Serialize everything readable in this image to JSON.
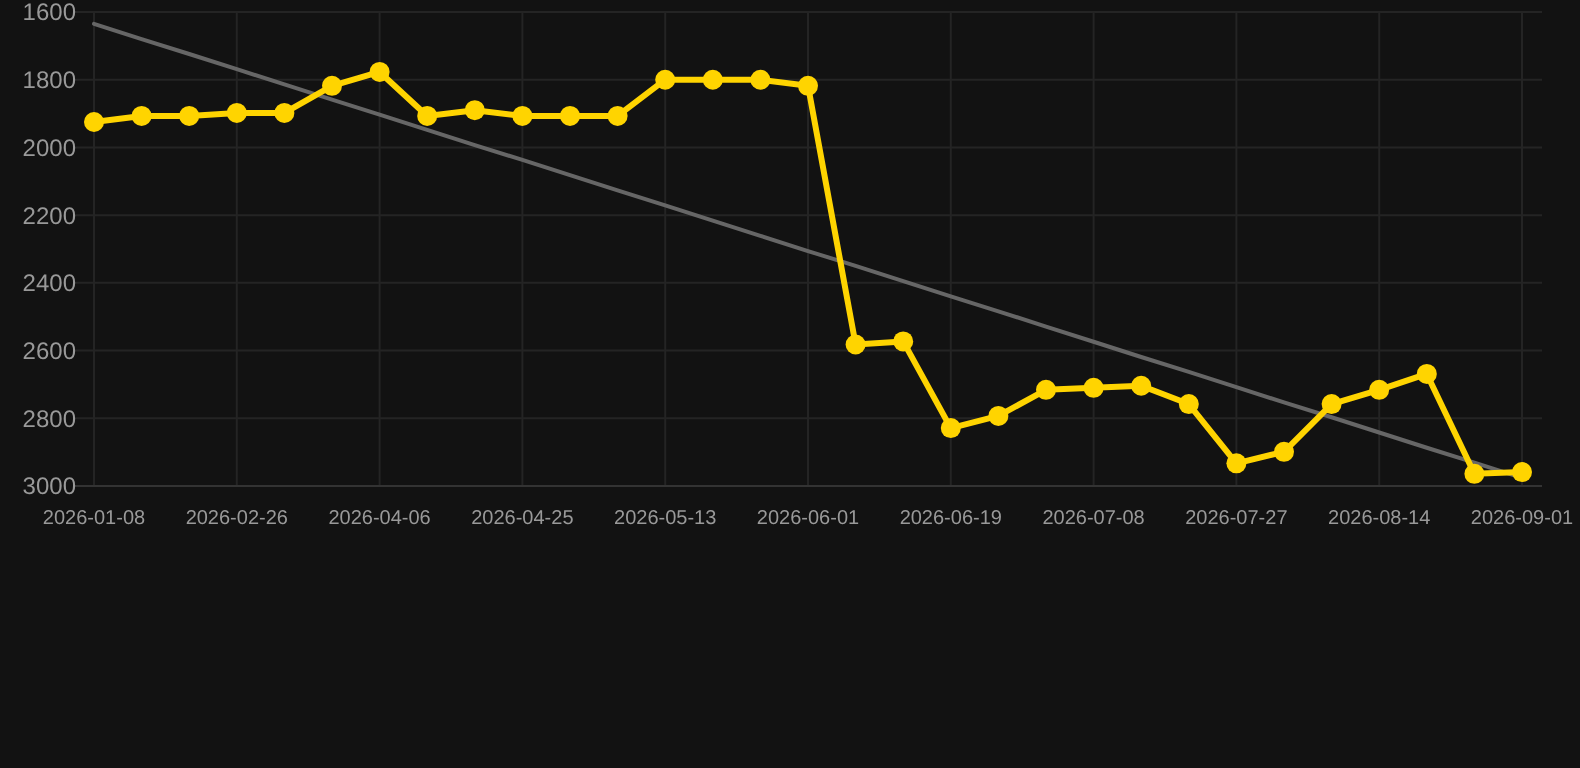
{
  "chart_data": {
    "type": "line",
    "categories": [
      "2026-01-08",
      null,
      null,
      "2026-02-26",
      null,
      null,
      "2026-04-06",
      null,
      null,
      "2026-04-25",
      null,
      null,
      "2026-05-13",
      null,
      null,
      "2026-06-01",
      null,
      null,
      "2026-06-19",
      null,
      null,
      "2026-07-08",
      null,
      null,
      "2026-07-27",
      null,
      null,
      "2026-08-14",
      null,
      null,
      "2026-09-01"
    ],
    "series": [
      {
        "color": "#ffd400",
        "marker": "circle",
        "values": [
          1925,
          1907,
          1907,
          1898,
          1898,
          1818,
          1777,
          1907,
          1890,
          1907,
          1907,
          1907,
          1800,
          1800,
          1800,
          1818,
          2582,
          2573,
          2829,
          2793,
          2716,
          2710,
          2704,
          2758,
          2933,
          2899,
          2758,
          2716,
          2669,
          2964,
          2959
        ]
      },
      {
        "type": "line",
        "color": "#666666",
        "marker": "none",
        "values": [
          1635,
          1680,
          1724,
          1769,
          1814,
          1859,
          1903,
          1948,
          1993,
          2037,
          2082,
          2127,
          2171,
          2216,
          2261,
          2306,
          2350,
          2395,
          2440,
          2484,
          2529,
          2574,
          2619,
          2663,
          2708,
          2753,
          2797,
          2842,
          2887,
          2931,
          2976
        ]
      }
    ],
    "ylim": [
      3000,
      1600
    ],
    "yticks": [
      1600,
      1800,
      2000,
      2200,
      2400,
      2600,
      2800,
      3000
    ],
    "grid": true
  }
}
